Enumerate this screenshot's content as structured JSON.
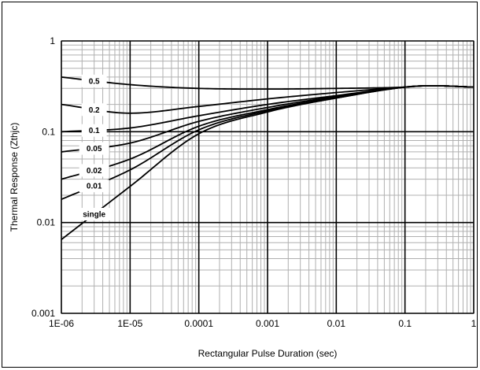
{
  "chart_data": {
    "type": "line",
    "title": "",
    "xlabel": "Rectangular Pulse Duration (sec)",
    "ylabel": "Thermal Response (Zthjc)",
    "x_scale": "log",
    "y_scale": "log",
    "xlim": [
      1e-06,
      1
    ],
    "ylim": [
      0.001,
      1
    ],
    "x_ticks": [
      {
        "value": 1e-06,
        "label": "1E-06"
      },
      {
        "value": 1e-05,
        "label": "1E-05"
      },
      {
        "value": 0.0001,
        "label": "0.0001"
      },
      {
        "value": 0.001,
        "label": "0.001"
      },
      {
        "value": 0.01,
        "label": "0.01"
      },
      {
        "value": 0.1,
        "label": "0.1"
      },
      {
        "value": 1,
        "label": "1"
      }
    ],
    "y_ticks": [
      {
        "value": 0.001,
        "label": "0.001"
      },
      {
        "value": 0.01,
        "label": "0.01"
      },
      {
        "value": 0.1,
        "label": "0.1"
      },
      {
        "value": 1,
        "label": "1"
      }
    ],
    "grid": "major and minor",
    "series": [
      {
        "name": "0.5",
        "x": [
          1e-06,
          1e-05,
          0.0001,
          0.001,
          0.01,
          0.1,
          0.2,
          0.3,
          1
        ],
        "y": [
          0.4,
          0.33,
          0.3,
          0.295,
          0.3,
          0.31,
          0.32,
          0.32,
          0.31
        ]
      },
      {
        "name": "0.2",
        "x": [
          1e-06,
          1e-05,
          0.0001,
          0.001,
          0.01,
          0.1,
          0.2,
          0.3,
          1
        ],
        "y": [
          0.2,
          0.16,
          0.19,
          0.23,
          0.27,
          0.31,
          0.32,
          0.32,
          0.31
        ]
      },
      {
        "name": "0.1",
        "x": [
          1e-06,
          1e-05,
          0.0001,
          0.001,
          0.01,
          0.1,
          0.2,
          0.3,
          1
        ],
        "y": [
          0.1,
          0.11,
          0.15,
          0.2,
          0.25,
          0.31,
          0.32,
          0.32,
          0.31
        ]
      },
      {
        "name": "0.05",
        "x": [
          1e-06,
          1e-05,
          0.0001,
          0.001,
          0.01,
          0.1,
          0.2,
          0.3,
          1
        ],
        "y": [
          0.06,
          0.075,
          0.13,
          0.185,
          0.245,
          0.31,
          0.32,
          0.32,
          0.31
        ]
      },
      {
        "name": "0.02",
        "x": [
          1e-06,
          1e-05,
          0.0001,
          0.001,
          0.01,
          0.1,
          0.2,
          0.3,
          1
        ],
        "y": [
          0.03,
          0.05,
          0.115,
          0.175,
          0.24,
          0.31,
          0.32,
          0.32,
          0.31
        ]
      },
      {
        "name": "0.01",
        "x": [
          1e-06,
          1e-05,
          0.0001,
          0.001,
          0.01,
          0.1,
          0.2,
          0.3,
          1
        ],
        "y": [
          0.018,
          0.038,
          0.105,
          0.17,
          0.235,
          0.31,
          0.32,
          0.32,
          0.31
        ]
      },
      {
        "name": "single",
        "x": [
          1e-06,
          1e-05,
          0.0001,
          0.001,
          0.01,
          0.1,
          0.2,
          0.3,
          1
        ],
        "y": [
          0.0065,
          0.025,
          0.095,
          0.165,
          0.235,
          0.31,
          0.32,
          0.32,
          0.31
        ]
      }
    ]
  }
}
